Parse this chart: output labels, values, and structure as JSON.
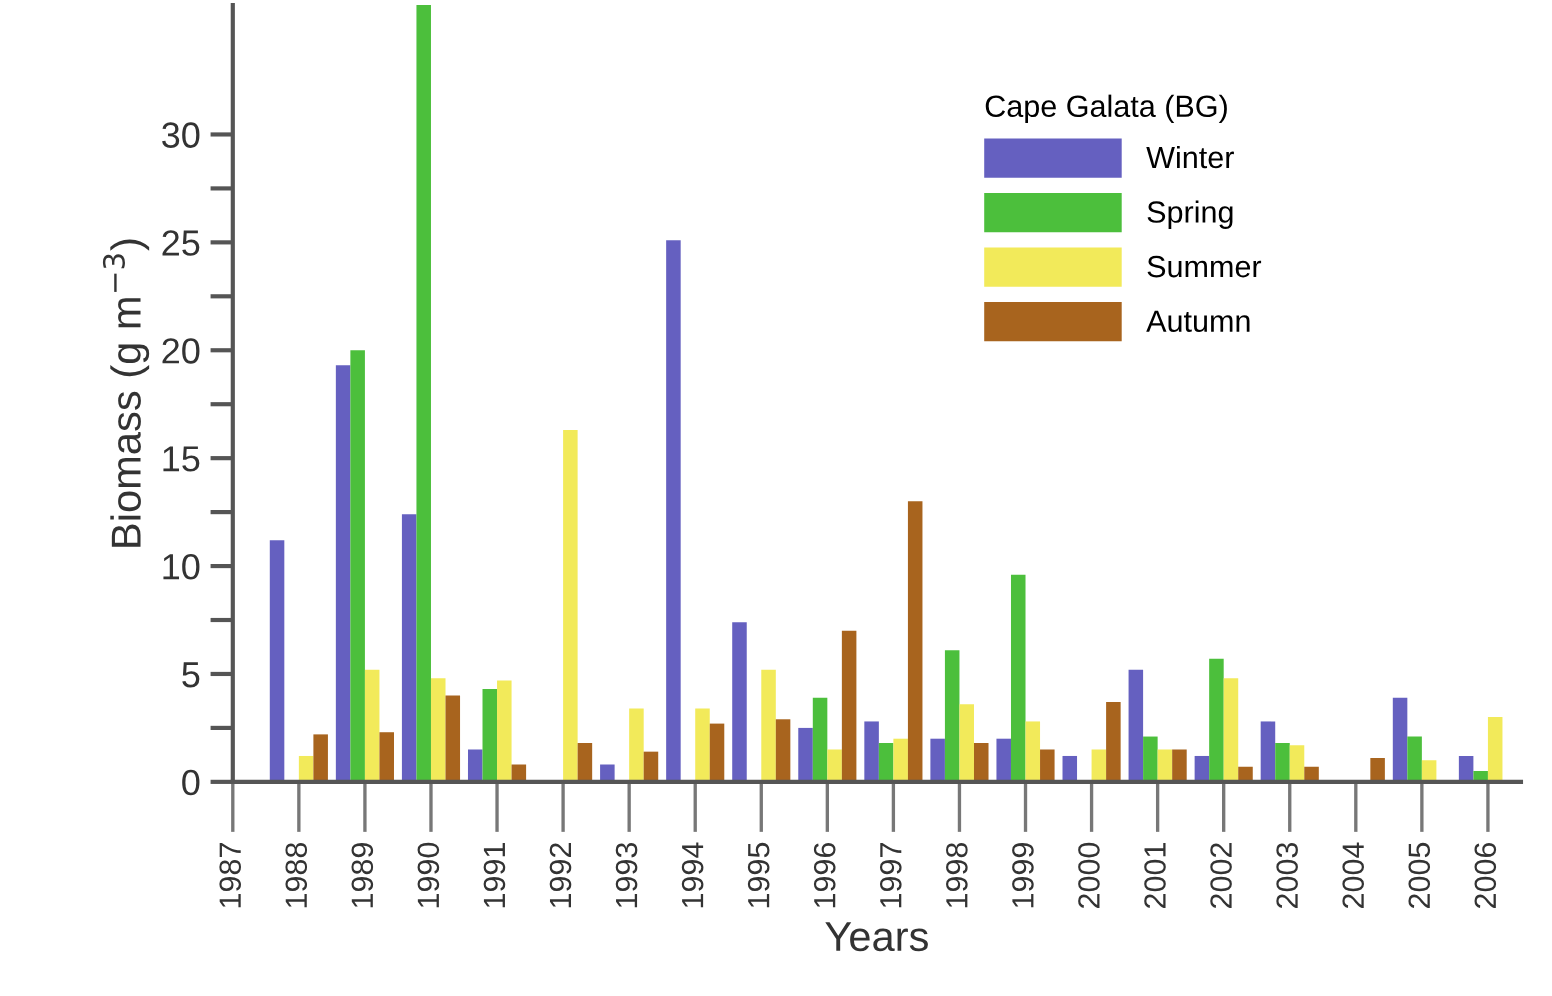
{
  "chart_data": {
    "type": "bar",
    "categories": [
      "1987",
      "1988",
      "1989",
      "1990",
      "1991",
      "1992",
      "1993",
      "1994",
      "1995",
      "1996",
      "1997",
      "1998",
      "1999",
      "2000",
      "2001",
      "2002",
      "2003",
      "2004",
      "2005",
      "2006"
    ],
    "series": [
      {
        "name": "Winter",
        "color": "#6560c0",
        "values": [
          null,
          11.2,
          19.3,
          12.4,
          1.5,
          0,
          0.8,
          25.1,
          7.4,
          2.5,
          2.8,
          2.0,
          2.0,
          1.2,
          5.2,
          1.2,
          2.8,
          null,
          3.9,
          1.2
        ]
      },
      {
        "name": "Spring",
        "color": "#4cbf3c",
        "values": [
          null,
          0,
          20.0,
          36,
          4.3,
          0,
          0,
          0,
          0,
          3.9,
          1.8,
          6.1,
          9.6,
          0,
          2.1,
          5.7,
          1.8,
          null,
          2.1,
          0.5
        ]
      },
      {
        "name": "Summer",
        "color": "#f2ea5a",
        "values": [
          null,
          1.2,
          5.2,
          4.8,
          4.7,
          16.3,
          3.4,
          3.4,
          5.2,
          1.5,
          2.0,
          3.6,
          2.8,
          1.5,
          1.5,
          4.8,
          1.7,
          0,
          1.0,
          3.0
        ]
      },
      {
        "name": "Autumn",
        "color": "#a8641e",
        "values": [
          null,
          2.2,
          2.3,
          4.0,
          0.8,
          1.8,
          1.4,
          2.7,
          2.9,
          7.0,
          13.0,
          1.8,
          1.5,
          3.7,
          1.5,
          0.7,
          0.7,
          1.1,
          null,
          null
        ]
      }
    ],
    "legend_title": "Cape Galata (BG)",
    "legend": "top right",
    "xlabel": "Years",
    "ylabel": "Biomass (g m$^{−3}$)",
    "ylim": [
      0,
      36
    ],
    "yticks": [
      0,
      {
        "value": 2.5,
        "label": null
      },
      5,
      {
        "value": 7.5,
        "label": null
      },
      10,
      {
        "value": 12.5,
        "label": null
      },
      15,
      {
        "value": 17.5,
        "label": null
      },
      20,
      {
        "value": 22.5,
        "label": null
      },
      25,
      {
        "value": 27.5,
        "label": null
      },
      30
    ],
    "grid": false
  }
}
